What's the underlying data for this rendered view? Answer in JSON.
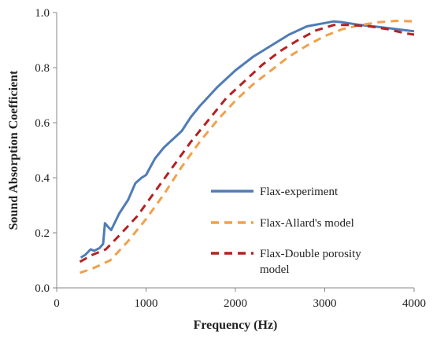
{
  "chart_data": {
    "type": "line",
    "title": "",
    "xlabel": "Frequency (Hz)",
    "ylabel": "Sound Absorption Coefficient",
    "xlim": [
      0,
      4000
    ],
    "ylim": [
      0,
      1.0
    ],
    "x_ticks": [
      "0",
      "1000",
      "2000",
      "3000",
      "4000"
    ],
    "y_ticks": [
      "0.0",
      "0.2",
      "0.4",
      "0.6",
      "0.8",
      "1.0"
    ],
    "grid": false,
    "legend_position": "right",
    "series": [
      {
        "name": "Flax-experiment",
        "color": "#4F7CB6",
        "style": "solid",
        "points": [
          [
            270,
            0.11
          ],
          [
            320,
            0.12
          ],
          [
            380,
            0.14
          ],
          [
            420,
            0.135
          ],
          [
            480,
            0.145
          ],
          [
            520,
            0.16
          ],
          [
            540,
            0.235
          ],
          [
            580,
            0.22
          ],
          [
            610,
            0.21
          ],
          [
            700,
            0.27
          ],
          [
            800,
            0.32
          ],
          [
            880,
            0.38
          ],
          [
            950,
            0.4
          ],
          [
            1000,
            0.41
          ],
          [
            1100,
            0.47
          ],
          [
            1200,
            0.51
          ],
          [
            1300,
            0.54
          ],
          [
            1400,
            0.57
          ],
          [
            1500,
            0.62
          ],
          [
            1600,
            0.66
          ],
          [
            1800,
            0.73
          ],
          [
            2000,
            0.79
          ],
          [
            2200,
            0.84
          ],
          [
            2400,
            0.88
          ],
          [
            2600,
            0.92
          ],
          [
            2800,
            0.95
          ],
          [
            3000,
            0.962
          ],
          [
            3100,
            0.968
          ],
          [
            3200,
            0.965
          ],
          [
            3400,
            0.955
          ],
          [
            3600,
            0.948
          ],
          [
            3800,
            0.94
          ],
          [
            4000,
            0.932
          ]
        ]
      },
      {
        "name": "Flax-Allard's model",
        "color": "#F0A04B",
        "style": "dashed",
        "points": [
          [
            260,
            0.055
          ],
          [
            400,
            0.07
          ],
          [
            600,
            0.1
          ],
          [
            800,
            0.17
          ],
          [
            1000,
            0.25
          ],
          [
            1200,
            0.34
          ],
          [
            1400,
            0.44
          ],
          [
            1600,
            0.53
          ],
          [
            1800,
            0.61
          ],
          [
            2000,
            0.68
          ],
          [
            2200,
            0.74
          ],
          [
            2400,
            0.79
          ],
          [
            2600,
            0.84
          ],
          [
            2800,
            0.88
          ],
          [
            3000,
            0.915
          ],
          [
            3200,
            0.94
          ],
          [
            3400,
            0.955
          ],
          [
            3600,
            0.965
          ],
          [
            3800,
            0.97
          ],
          [
            4000,
            0.968
          ]
        ]
      },
      {
        "name": "Flax-Double porosity model",
        "color": "#B22222",
        "style": "dashed",
        "points": [
          [
            260,
            0.095
          ],
          [
            400,
            0.12
          ],
          [
            550,
            0.14
          ],
          [
            700,
            0.19
          ],
          [
            900,
            0.26
          ],
          [
            1100,
            0.35
          ],
          [
            1300,
            0.44
          ],
          [
            1500,
            0.53
          ],
          [
            1700,
            0.61
          ],
          [
            1900,
            0.69
          ],
          [
            2100,
            0.75
          ],
          [
            2300,
            0.81
          ],
          [
            2500,
            0.86
          ],
          [
            2700,
            0.9
          ],
          [
            2900,
            0.935
          ],
          [
            3100,
            0.955
          ],
          [
            3300,
            0.955
          ],
          [
            3500,
            0.95
          ],
          [
            3700,
            0.94
          ],
          [
            3900,
            0.925
          ],
          [
            4000,
            0.92
          ]
        ]
      }
    ]
  }
}
